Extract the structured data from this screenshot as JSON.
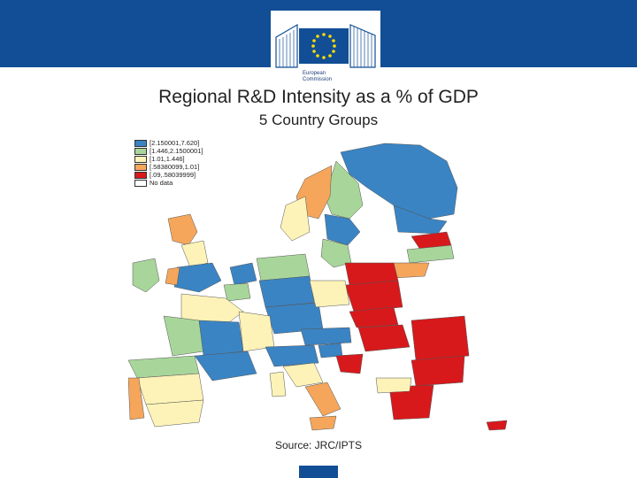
{
  "header": {
    "logo_line1": "European",
    "logo_line2": "Commission",
    "brand_color": "#124e95",
    "logo_icon": "eu-flag-icon"
  },
  "title": "Regional R&D Intensity as a % of GDP",
  "subtitle": "5 Country Groups",
  "legend": {
    "items": [
      {
        "label": "[2.150001,7.620]",
        "color": "#3a84c4"
      },
      {
        "label": "[1.446,2.1500001]",
        "color": "#a8d69a"
      },
      {
        "label": "[1.01,1.446]",
        "color": "#fdf3b8"
      },
      {
        "label": "[.58380099,1.01]",
        "color": "#f5a65b"
      },
      {
        "label": "[.09,.58039999]",
        "color": "#d7191c"
      },
      {
        "label": "No data",
        "color": "#ffffff"
      }
    ]
  },
  "source": "Source: JRC/IPTS"
}
